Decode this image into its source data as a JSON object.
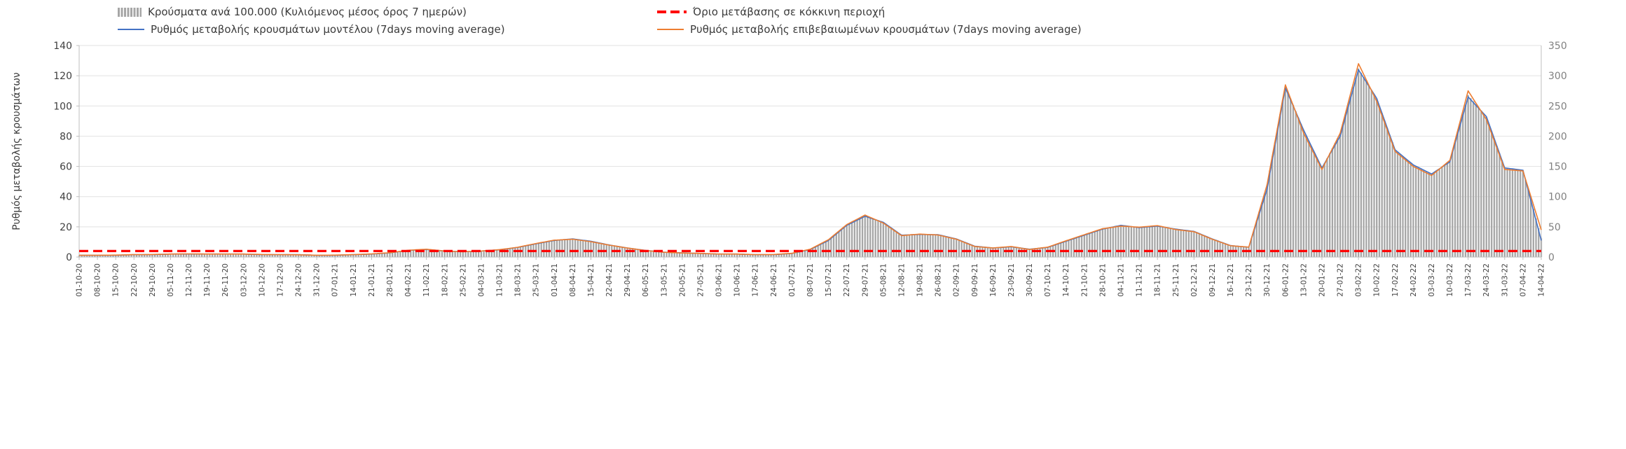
{
  "legend": {
    "bars_label": "Κρούσματα ανά 100.000 (Κυλιόμενος μέσος όρος 7 ημερών)",
    "threshold_label": "Όριο μετάβασης σε κόκκινη περιοχή",
    "model_label": "Ρυθμός μεταβολής κρουσμάτων μοντέλου (7days moving average)",
    "confirmed_label": "Ρυθμός μεταβολής επιβεβαιωμένων κρουσμάτων (7days moving average)"
  },
  "chart_data": {
    "type": "combo",
    "title": "",
    "ylabel_left": "Ρυθμός μεταβολής κρουσμάτων",
    "ylabel_right": "",
    "grid": "horizontal",
    "legend_position": "top",
    "colors": {
      "bar": "#a6a6a6",
      "model": "#4472c4",
      "confirmed": "#ed7d31",
      "threshold": "#ff0000",
      "grid": "#e2e2e2",
      "axis": "#bfbfbf",
      "tick_text": "#404040",
      "right_tick_text": "#808080"
    },
    "left_axis": {
      "min": 0,
      "max": 140,
      "ticks": [
        0,
        20,
        40,
        60,
        80,
        100,
        120,
        140
      ]
    },
    "right_axis": {
      "min": 0,
      "max": 350,
      "ticks": [
        0,
        50,
        100,
        150,
        200,
        250,
        300,
        350
      ]
    },
    "categories": [
      "01-10-20",
      "08-10-20",
      "15-10-20",
      "22-10-20",
      "29-10-20",
      "05-11-20",
      "12-11-20",
      "19-11-20",
      "26-11-20",
      "03-12-20",
      "10-12-20",
      "17-12-20",
      "24-12-20",
      "31-12-20",
      "07-01-21",
      "14-01-21",
      "21-01-21",
      "28-01-21",
      "04-02-21",
      "11-02-21",
      "18-02-21",
      "25-02-21",
      "04-03-21",
      "11-03-21",
      "18-03-21",
      "25-03-21",
      "01-04-21",
      "08-04-21",
      "15-04-21",
      "22-04-21",
      "29-04-21",
      "06-05-21",
      "13-05-21",
      "20-05-21",
      "27-05-21",
      "03-06-21",
      "10-06-21",
      "17-06-21",
      "24-06-21",
      "01-07-21",
      "08-07-21",
      "15-07-21",
      "22-07-21",
      "29-07-21",
      "05-08-21",
      "12-08-21",
      "19-08-21",
      "26-08-21",
      "02-09-21",
      "09-09-21",
      "16-09-21",
      "23-09-21",
      "30-09-21",
      "07-10-21",
      "14-10-21",
      "21-10-21",
      "28-10-21",
      "04-11-21",
      "11-11-21",
      "18-11-21",
      "25-11-21",
      "02-12-21",
      "09-12-21",
      "16-12-21",
      "23-12-21",
      "30-12-21",
      "06-01-22",
      "13-01-22",
      "20-01-22",
      "27-01-22",
      "03-02-22",
      "10-02-22",
      "17-02-22",
      "24-02-22",
      "03-03-22",
      "10-03-22",
      "17-03-22",
      "24-03-22",
      "31-03-22",
      "07-04-22",
      "14-04-22"
    ],
    "series": [
      {
        "name": "Κρούσματα ανά 100.000 (Κυλιόμενος μέσος όρος 7 ημερών)",
        "type": "bar",
        "axis": "right",
        "values": [
          3,
          3,
          3,
          4,
          4,
          5,
          5,
          5,
          5,
          5,
          4,
          4,
          4,
          3,
          3,
          4,
          5,
          7,
          11,
          13,
          10,
          9,
          10,
          12,
          16,
          22,
          28,
          30,
          26,
          20,
          15,
          11,
          8,
          7,
          6,
          5,
          5,
          4,
          4,
          6,
          12,
          28,
          52,
          68,
          58,
          36,
          38,
          37,
          30,
          18,
          15,
          17,
          13,
          16,
          26,
          36,
          46,
          53,
          49,
          51,
          46,
          42,
          30,
          19,
          16,
          120,
          283,
          210,
          147,
          205,
          312,
          262,
          178,
          152,
          137,
          158,
          268,
          232,
          148,
          144,
          32
        ]
      },
      {
        "name": "Ρυθμός μεταβολής κρουσμάτων μοντέλου (7days moving average)",
        "type": "line",
        "axis": "left",
        "values": [
          1.2,
          1.2,
          1.2,
          1.6,
          1.6,
          2,
          2,
          2,
          2,
          2,
          1.6,
          1.6,
          1.6,
          1.2,
          1.2,
          1.6,
          2,
          2.8,
          4.4,
          5,
          4,
          3.6,
          4,
          4.8,
          6.4,
          8.8,
          11,
          12,
          10.5,
          8,
          6,
          4.4,
          3.2,
          2.8,
          2.4,
          2,
          2,
          1.6,
          1.6,
          2.4,
          5,
          11,
          21,
          27,
          23,
          14.5,
          15,
          14.8,
          12,
          7.2,
          6,
          6.8,
          5.2,
          6.4,
          10.5,
          14.5,
          18.5,
          21,
          19.5,
          20.5,
          18.5,
          17,
          12,
          7.6,
          6.5,
          45,
          112,
          84,
          59,
          80,
          124,
          105,
          71,
          61,
          55,
          63,
          106,
          93,
          59,
          57.5,
          11
        ]
      },
      {
        "name": "Ρυθμός μεταβολής επιβεβαιωμένων κρουσμάτων (7days moving average)",
        "type": "line",
        "axis": "left",
        "values": [
          1.2,
          1.2,
          1.3,
          1.6,
          1.7,
          2,
          2.1,
          2,
          2,
          2,
          1.7,
          1.6,
          1.5,
          1.2,
          1.3,
          1.6,
          2.1,
          2.9,
          4.5,
          5.2,
          4,
          3.5,
          4,
          4.9,
          6.5,
          9,
          11.2,
          11.8,
          10.2,
          7.9,
          6,
          4.3,
          3.2,
          2.7,
          2.4,
          2,
          2,
          1.6,
          1.7,
          2.5,
          5.2,
          11.5,
          21.5,
          27.8,
          22.5,
          14.2,
          15.2,
          14.6,
          11.8,
          7,
          6,
          7,
          5,
          6.6,
          10.8,
          14.8,
          18.8,
          20.5,
          19.8,
          20.8,
          18.2,
          16.8,
          11.8,
          7.5,
          6.6,
          48,
          114,
          82,
          58,
          82,
          128,
          103,
          70,
          60,
          54,
          64,
          110,
          91,
          58,
          57,
          18
        ]
      },
      {
        "name": "Όριο μετάβασης σε κόκκινη περιοχή",
        "type": "threshold",
        "axis": "left",
        "value": 4
      }
    ]
  }
}
